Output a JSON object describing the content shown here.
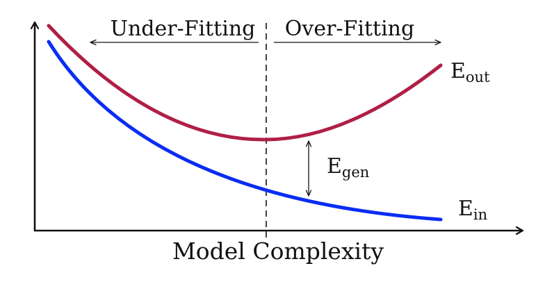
{
  "xlabel": "Model Complexity",
  "regions": {
    "left": "Under-Fitting",
    "right": "Over-Fitting"
  },
  "curves": {
    "out": {
      "base": "E",
      "sub": "out",
      "color": "#b01f45"
    },
    "in": {
      "base": "E",
      "sub": "in",
      "color": "#0a2df2"
    }
  },
  "gap": {
    "base": "E",
    "sub": "gen"
  }
}
